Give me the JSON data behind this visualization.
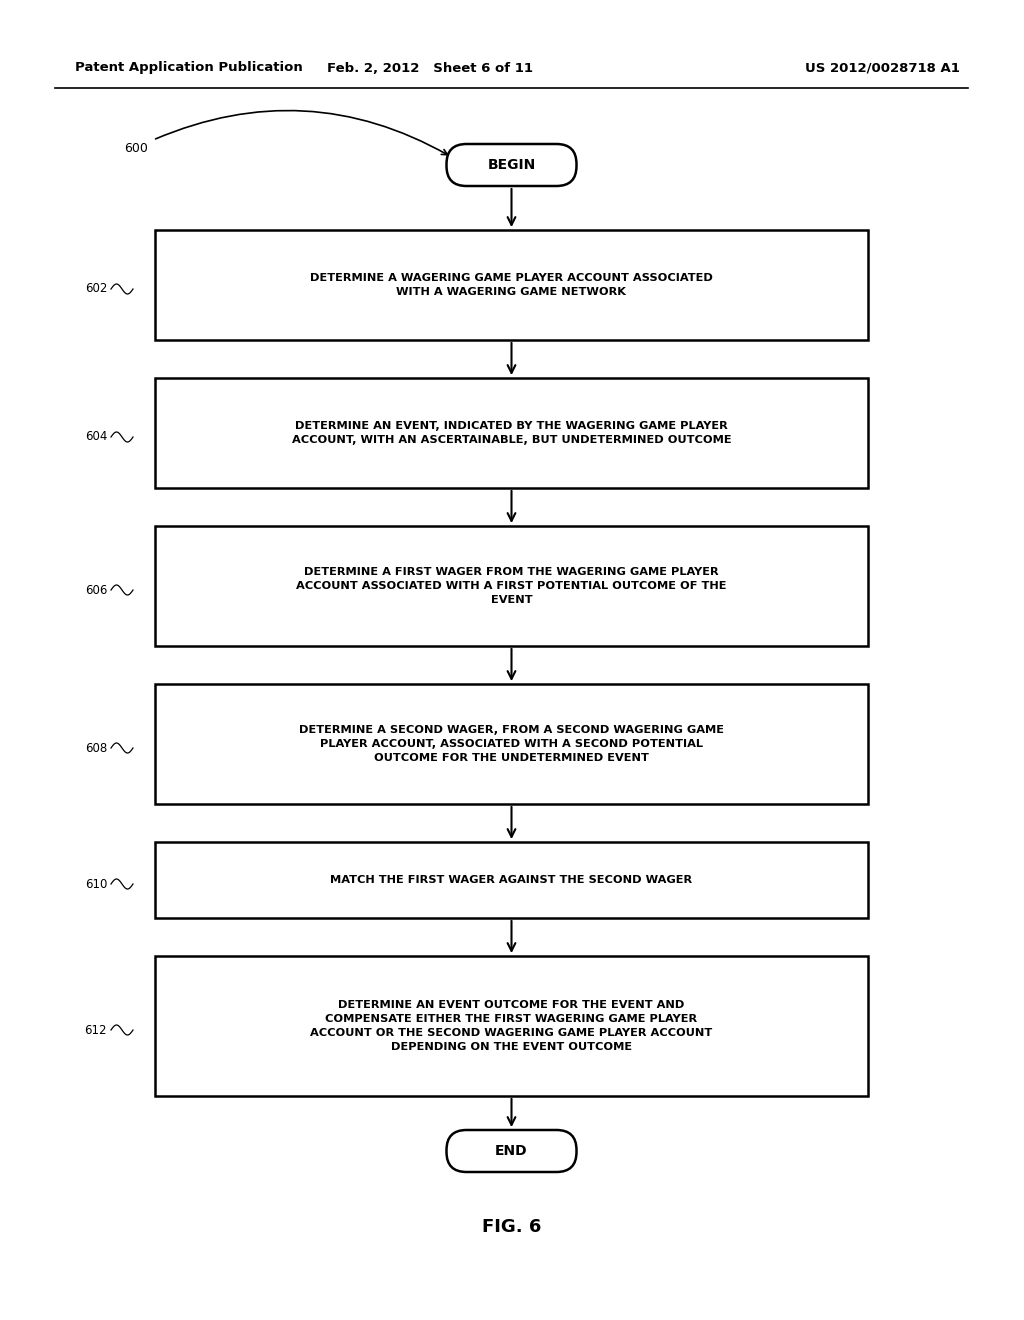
{
  "header_left": "Patent Application Publication",
  "header_mid": "Feb. 2, 2012   Sheet 6 of 11",
  "header_right": "US 2012/0028718 A1",
  "fig_label": "FIG. 6",
  "steps": [
    {
      "id": "602",
      "text": "DETERMINE A WAGERING GAME PLAYER ACCOUNT ASSOCIATED\nWITH A WAGERING GAME NETWORK"
    },
    {
      "id": "604",
      "text": "DETERMINE AN EVENT, INDICATED BY THE WAGERING GAME PLAYER\nACCOUNT, WITH AN ASCERTAINABLE, BUT UNDETERMINED OUTCOME"
    },
    {
      "id": "606",
      "text": "DETERMINE A FIRST WAGER FROM THE WAGERING GAME PLAYER\nACCOUNT ASSOCIATED WITH A FIRST POTENTIAL OUTCOME OF THE\nEVENT"
    },
    {
      "id": "608",
      "text": "DETERMINE A SECOND WAGER, FROM A SECOND WAGERING GAME\nPLAYER ACCOUNT, ASSOCIATED WITH A SECOND POTENTIAL\nOUTCOME FOR THE UNDETERMINED EVENT"
    },
    {
      "id": "610",
      "text": "MATCH THE FIRST WAGER AGAINST THE SECOND WAGER"
    },
    {
      "id": "612",
      "text": "DETERMINE AN EVENT OUTCOME FOR THE EVENT AND\nCOMPENSATE EITHER THE FIRST WAGERING GAME PLAYER\nACCOUNT OR THE SECOND WAGERING GAME PLAYER ACCOUNT\nDEPENDING ON THE EVENT OUTCOME"
    }
  ],
  "bg_color": "#ffffff",
  "box_edge_color": "#000000",
  "text_color": "#000000",
  "arrow_color": "#000000"
}
